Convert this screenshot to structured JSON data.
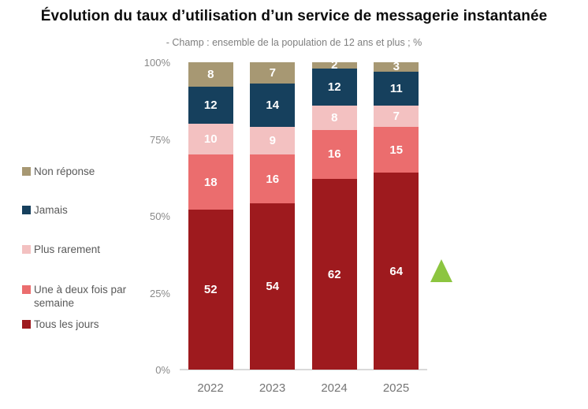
{
  "header": {
    "title": "Évolution du taux d’utilisation d’un service de messagerie instantanée",
    "subtitle": "- Champ : ensemble de la population de 12 ans et plus ; %"
  },
  "legend": {
    "items": [
      {
        "label": "Non réponse",
        "color": "#A79873"
      },
      {
        "label": "Jamais",
        "color": "#16405D"
      },
      {
        "label": "Plus rarement",
        "color": "#F3C1C1"
      },
      {
        "label": "Une à deux fois par semaine",
        "color": "#EB6D6E"
      },
      {
        "label": "Tous les jours",
        "color": "#9E1A1E"
      }
    ]
  },
  "chart_data": {
    "type": "bar",
    "stacked": true,
    "title": "Évolution du taux d’utilisation d’un service de messagerie instantanée",
    "subtitle": "- Champ : ensemble de la population de 12 ans et plus ; %",
    "categories": [
      "2022",
      "2023",
      "2024",
      "2025"
    ],
    "series": [
      {
        "name": "Tous les jours",
        "color": "#9E1A1E",
        "values": [
          52,
          54,
          62,
          64
        ]
      },
      {
        "name": "Une à deux fois par semaine",
        "color": "#EB6D6E",
        "values": [
          18,
          16,
          16,
          15
        ]
      },
      {
        "name": "Plus rarement",
        "color": "#F3C1C1",
        "values": [
          10,
          9,
          8,
          7
        ]
      },
      {
        "name": "Jamais",
        "color": "#16405D",
        "values": [
          12,
          14,
          12,
          11
        ]
      },
      {
        "name": "Non réponse",
        "color": "#A79873",
        "values": [
          8,
          7,
          2,
          3
        ]
      }
    ],
    "ylim": [
      0,
      100
    ],
    "y_ticks": [
      "100%",
      "75%",
      "50%",
      "25%",
      "0%"
    ],
    "unit": "%",
    "grid": false,
    "legend_position": "left",
    "value_labels": "inside-white",
    "annotation": {
      "shape": "triangle-up",
      "color": "#8CC540",
      "location": "right of 2025 bar at ~30% height"
    }
  }
}
